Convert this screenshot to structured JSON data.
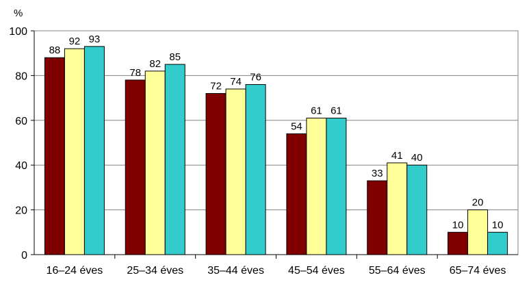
{
  "chart_data": {
    "type": "bar",
    "title": "",
    "xlabel": "",
    "ylabel": "%",
    "ylim": [
      0,
      100
    ],
    "yticks": [
      0,
      20,
      40,
      60,
      80,
      100
    ],
    "grid": true,
    "legend": "none",
    "categories": [
      "16–24 éves",
      "25–34 éves",
      "35–44 éves",
      "45–54 éves",
      "55–64 éves",
      "65–74 éves"
    ],
    "series": [
      {
        "name": "series-1",
        "color": "#800000",
        "values": [
          88,
          78,
          72,
          54,
          33,
          10
        ],
        "labels": [
          "88",
          "78",
          "72",
          "54",
          "33",
          "10"
        ]
      },
      {
        "name": "series-2",
        "color": "#FFFF99",
        "values": [
          92,
          82,
          74,
          61,
          41,
          20
        ],
        "labels": [
          "92",
          "82",
          "74",
          "61",
          "41",
          "20"
        ]
      },
      {
        "name": "series-3",
        "color": "#33CCCC",
        "values": [
          93,
          85,
          76,
          61,
          40,
          10
        ],
        "labels": [
          "93",
          "85",
          "76",
          "61",
          "40",
          "10"
        ]
      }
    ]
  }
}
